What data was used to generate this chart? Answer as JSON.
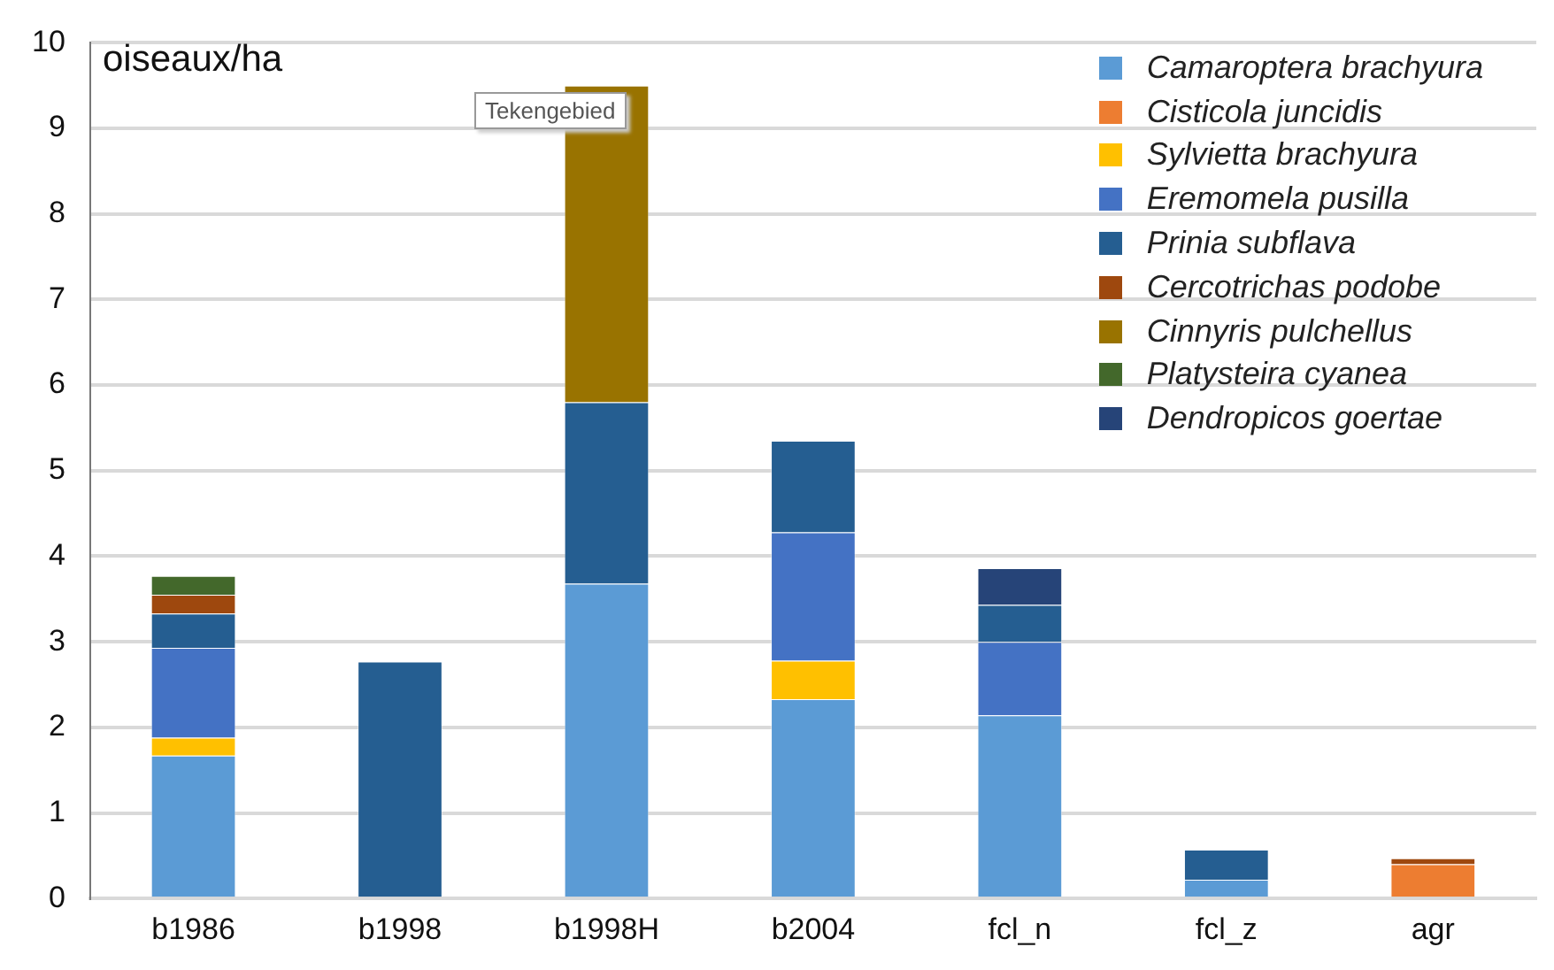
{
  "chart_data": {
    "type": "bar",
    "stacked": true,
    "ylabel": "oiseaux/ha",
    "categories": [
      "b1986",
      "b1998",
      "b1998H",
      "b2004",
      "fcl_n",
      "fcl_z",
      "agr"
    ],
    "series": [
      {
        "name": "Camaroptera brachyura",
        "color": "#5b9bd5",
        "values": [
          1.67,
          null,
          3.68,
          2.33,
          2.14,
          0.22,
          null
        ]
      },
      {
        "name": "Cisticola juncidis",
        "color": "#ed7d31",
        "values": [
          null,
          null,
          null,
          null,
          null,
          null,
          0.4
        ]
      },
      {
        "name": "Sylvietta brachyura",
        "color": "#ffc000",
        "values": [
          0.21,
          null,
          null,
          0.45,
          null,
          null,
          null
        ]
      },
      {
        "name": "Eremomela pusilla",
        "color": "#4472c4",
        "values": [
          1.05,
          null,
          null,
          1.5,
          0.86,
          null,
          null
        ]
      },
      {
        "name": "Prinia subflava",
        "color": "#255e91",
        "values": [
          0.4,
          2.77,
          2.12,
          1.07,
          0.43,
          0.35,
          null
        ]
      },
      {
        "name": "Cercotrichas podobe",
        "color": "#9e480e",
        "values": [
          0.22,
          null,
          null,
          null,
          null,
          null,
          0.07
        ]
      },
      {
        "name": "Cinnyris pulchellus",
        "color": "#997300",
        "values": [
          null,
          null,
          3.7,
          null,
          null,
          null,
          null
        ]
      },
      {
        "name": "Platysteira cyanea",
        "color": "#43682b",
        "values": [
          0.22,
          null,
          null,
          null,
          null,
          null,
          null
        ]
      },
      {
        "name": "Dendropicos goertae",
        "color": "#264478",
        "values": [
          null,
          null,
          null,
          null,
          0.43,
          null,
          null
        ]
      }
    ],
    "ylim": [
      0,
      10
    ],
    "yticks": [
      0,
      1,
      2,
      3,
      4,
      5,
      6,
      7,
      8,
      9,
      10
    ],
    "grid": "y",
    "legend": "top right",
    "annotations": [
      "Tekengebied"
    ]
  }
}
